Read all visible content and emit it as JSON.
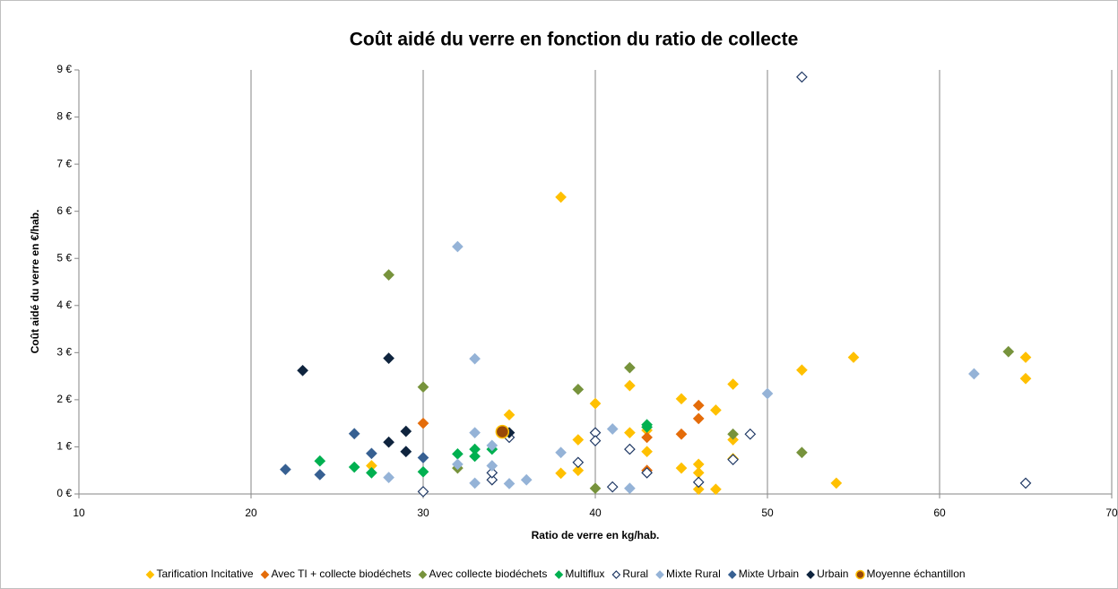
{
  "chart_data": {
    "type": "scatter",
    "title": "Coût aidé du verre en fonction du ratio de collecte",
    "x_label": "Ratio de verre en kg/hab.",
    "y_label": "Coût aidé du verre en €/hab.",
    "xlim": [
      10,
      70
    ],
    "xticks": [
      10,
      20,
      30,
      40,
      50,
      60,
      70
    ],
    "ylim": [
      0,
      9
    ],
    "yticks": [
      {
        "value": 0,
        "label": "0 €"
      },
      {
        "value": 1,
        "label": "1 €"
      },
      {
        "value": 2,
        "label": "2 €"
      },
      {
        "value": 3,
        "label": "3 €"
      },
      {
        "value": 4,
        "label": "4 €"
      },
      {
        "value": 5,
        "label": "5 €"
      },
      {
        "value": 6,
        "label": "6 €"
      },
      {
        "value": 7,
        "label": "7 €"
      },
      {
        "value": 8,
        "label": "8 €"
      },
      {
        "value": 9,
        "label": "9 €"
      }
    ],
    "grid": "x",
    "series": [
      {
        "name": "Tarification Incitative",
        "color": "#ffc000",
        "marker": "diamond",
        "x": [
          38,
          27,
          35,
          38,
          39,
          39,
          40,
          42,
          42,
          43,
          43,
          45,
          45,
          46,
          46,
          46,
          47,
          47,
          48,
          48,
          48,
          52,
          54,
          55,
          65,
          65
        ],
        "values": [
          6.3,
          0.6,
          1.68,
          0.44,
          0.5,
          1.15,
          1.92,
          2.3,
          1.3,
          0.9,
          1.35,
          2.02,
          0.55,
          0.45,
          0.63,
          0.1,
          1.78,
          0.1,
          2.33,
          1.15,
          0.75,
          2.63,
          0.23,
          2.9,
          2.9,
          2.45
        ]
      },
      {
        "name": "Avec TI + collecte biodéchets",
        "color": "#e46c0a",
        "marker": "diamond",
        "x": [
          30,
          43,
          43,
          45,
          46,
          46
        ],
        "values": [
          1.5,
          1.2,
          0.5,
          1.27,
          1.88,
          1.6
        ]
      },
      {
        "name": "Avec collecte biodéchets",
        "color": "#77933c",
        "marker": "diamond",
        "x": [
          28,
          30,
          32,
          39,
          40,
          42,
          48,
          52,
          64
        ],
        "values": [
          4.65,
          2.27,
          0.55,
          2.22,
          0.12,
          2.68,
          1.27,
          0.88,
          3.02
        ]
      },
      {
        "name": "Multiflux",
        "color": "#00b050",
        "marker": "diamond",
        "x": [
          24,
          26,
          27,
          30,
          32,
          33,
          33,
          34,
          43,
          43
        ],
        "values": [
          0.7,
          0.57,
          0.45,
          0.47,
          0.85,
          0.95,
          0.8,
          0.95,
          1.47,
          1.42
        ]
      },
      {
        "name": "Rural",
        "color": "#1f3864",
        "fill": "#ffffff",
        "marker": "diamond",
        "x": [
          52,
          30,
          34,
          34,
          35,
          39,
          40,
          40,
          41,
          42,
          43,
          46,
          48,
          49,
          65
        ],
        "values": [
          8.85,
          0.05,
          0.3,
          0.45,
          1.2,
          0.67,
          1.3,
          1.13,
          0.15,
          0.95,
          0.45,
          0.25,
          0.73,
          1.27,
          0.23
        ]
      },
      {
        "name": "Mixte Rural",
        "color": "#95b3d7",
        "marker": "diamond",
        "x": [
          32,
          33,
          33,
          34,
          34,
          33,
          35,
          36,
          32,
          28,
          38,
          41,
          42,
          50,
          62
        ],
        "values": [
          5.25,
          2.87,
          1.3,
          1.03,
          0.6,
          0.23,
          0.22,
          0.3,
          0.63,
          0.35,
          0.88,
          1.38,
          0.12,
          2.13,
          2.55
        ]
      },
      {
        "name": "Mixte Urbain",
        "color": "#376092",
        "marker": "diamond",
        "x": [
          22,
          24,
          26,
          27,
          29,
          30
        ],
        "values": [
          0.52,
          0.41,
          1.28,
          0.86,
          0.9,
          0.77
        ]
      },
      {
        "name": "Urbain",
        "color": "#0f243e",
        "marker": "diamond",
        "x": [
          23,
          28,
          28,
          29,
          29,
          35
        ],
        "values": [
          2.62,
          2.88,
          1.1,
          1.33,
          0.9,
          1.3
        ]
      },
      {
        "name": "Moyenne échantillon",
        "color": "#984807",
        "edgecolor": "#ffc000",
        "marker": "circle",
        "x": [
          34.6
        ],
        "values": [
          1.32
        ]
      }
    ]
  }
}
